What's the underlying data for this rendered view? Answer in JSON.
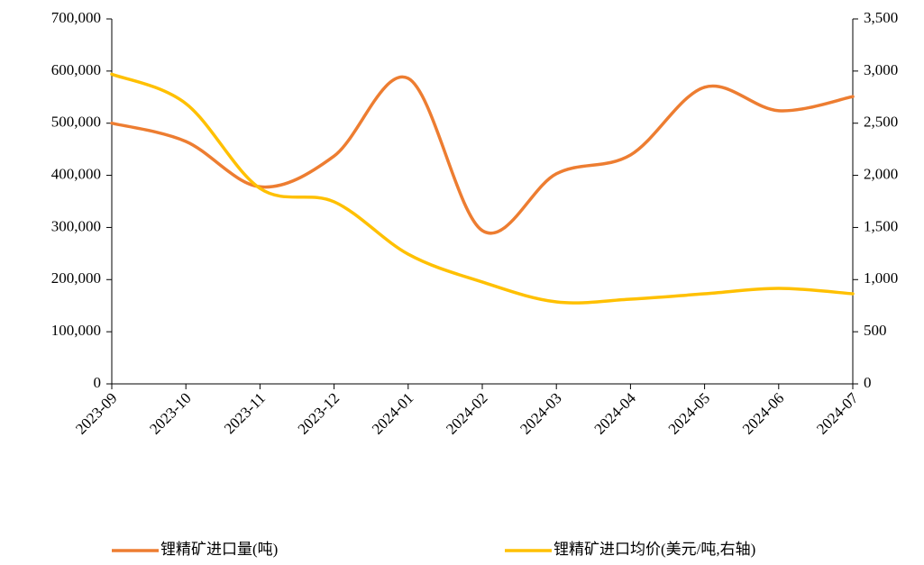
{
  "chart_data": {
    "type": "line",
    "categories": [
      "2023-09",
      "2023-10",
      "2023-11",
      "2023-12",
      "2024-01",
      "2024-02",
      "2024-03",
      "2024-04",
      "2024-05",
      "2024-06",
      "2024-07"
    ],
    "series": [
      {
        "name": "锂精矿进口量(吨)",
        "color": "#ed7d31",
        "values": [
          500000,
          465000,
          378000,
          437000,
          586000,
          294000,
          403000,
          439000,
          569000,
          524000,
          551000
        ]
      },
      {
        "name": "锂精矿进口均价(美元/吨,右轴)",
        "color": "#ffc000",
        "axis": "y2",
        "values": [
          2970,
          2688,
          1875,
          1746,
          1244,
          977,
          786,
          812,
          864,
          916,
          864
        ]
      }
    ],
    "ylim": [
      0,
      700000
    ],
    "yticks": [
      0,
      {
        "value": 100000,
        "label": "100,000"
      },
      {
        "value": 200000,
        "label": "200,000"
      },
      {
        "value": 300000,
        "label": "300,000"
      },
      {
        "value": 400000,
        "label": "400,000"
      },
      {
        "value": 500000,
        "label": "500,000"
      },
      {
        "value": 600000,
        "label": "600,000"
      },
      {
        "value": 700000,
        "label": "700,000"
      }
    ],
    "y2lim": [
      0,
      3500
    ],
    "y2ticks": [
      0,
      500,
      {
        "value": 1000,
        "label": "1,000"
      },
      {
        "value": 1500,
        "label": "1,500"
      },
      {
        "value": 2000,
        "label": "2,000"
      },
      {
        "value": 2500,
        "label": "2,500"
      },
      {
        "value": 3000,
        "label": "3,000"
      },
      {
        "value": 3500,
        "label": "3,500"
      }
    ],
    "smooth": true
  }
}
